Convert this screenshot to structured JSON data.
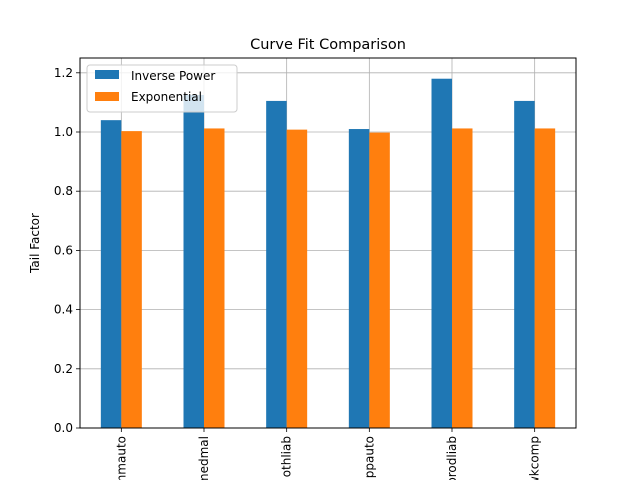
{
  "chart_data": {
    "type": "bar",
    "title": "Curve Fit Comparison",
    "xlabel": "",
    "ylabel": "Tail Factor",
    "categories": [
      "commauto",
      "medmal",
      "othliab",
      "ppauto",
      "prodliab",
      "wkcomp"
    ],
    "series": [
      {
        "name": "Inverse Power",
        "color": "#1f77b4",
        "values": [
          1.04,
          1.125,
          1.105,
          1.01,
          1.18,
          1.105
        ]
      },
      {
        "name": "Exponential",
        "color": "#ff7f0e",
        "values": [
          1.003,
          1.012,
          1.008,
          0.998,
          1.012,
          1.012
        ]
      }
    ],
    "ylim": [
      0,
      1.25
    ],
    "yticks": [
      "0.0",
      "0.2",
      "0.4",
      "0.6",
      "0.8",
      "1.0",
      "1.2"
    ],
    "grid": true,
    "legend_position": "top-left"
  }
}
